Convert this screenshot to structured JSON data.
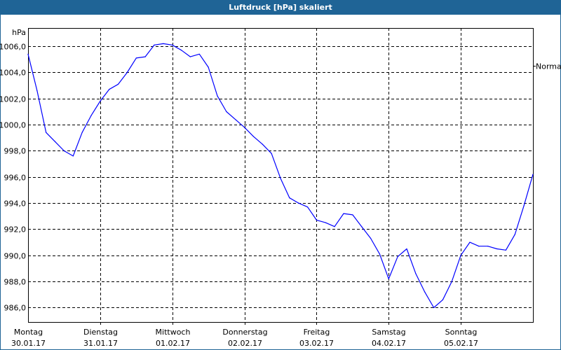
{
  "window": {
    "title": "Luftdruck [hPa] skaliert",
    "title_bar_color": "#1f6496"
  },
  "chart_data": {
    "type": "line",
    "title": "Luftdruck [hPa] skaliert",
    "ylabel": "hPa",
    "xlabel": "",
    "ylim": [
      984.9,
      1007.4
    ],
    "xlim": [
      "2017-01-30T00:00",
      "2017-02-06T00:00"
    ],
    "grid": true,
    "yticks": [
      986,
      988,
      990,
      992,
      994,
      996,
      998,
      1000,
      1002,
      1004,
      1006
    ],
    "ytick_labels": [
      "986,0",
      "988,0",
      "990,0",
      "992,0",
      "994,0",
      "996,0",
      "998,0",
      "1000,0",
      "1002,0",
      "1004,0",
      "1006,0"
    ],
    "xticks": [
      {
        "day": "Montag",
        "date": "30.01.17",
        "at": "2017-01-30T00:00"
      },
      {
        "day": "Dienstag",
        "date": "31.01.17",
        "at": "2017-01-31T00:00"
      },
      {
        "day": "Mittwoch",
        "date": "01.02.17",
        "at": "2017-02-01T00:00"
      },
      {
        "day": "Donnerstag",
        "date": "02.02.17",
        "at": "2017-02-02T00:00"
      },
      {
        "day": "Freitag",
        "date": "03.02.17",
        "at": "2017-02-03T00:00"
      },
      {
        "day": "Samstag",
        "date": "04.02.17",
        "at": "2017-02-04T00:00"
      },
      {
        "day": "Sonntag",
        "date": "05.02.17",
        "at": "2017-02-05T00:00"
      }
    ],
    "reference_line": {
      "label": "Normal",
      "value": 1004.5
    },
    "series": [
      {
        "color": "#0000ff",
        "x": [
          "2017-01-30T00:00",
          "2017-01-30T03:00",
          "2017-01-30T06:00",
          "2017-01-30T09:00",
          "2017-01-30T12:00",
          "2017-01-30T15:00",
          "2017-01-30T18:00",
          "2017-01-30T21:00",
          "2017-01-31T00:00",
          "2017-01-31T03:00",
          "2017-01-31T06:00",
          "2017-01-31T09:00",
          "2017-01-31T12:00",
          "2017-01-31T15:00",
          "2017-01-31T18:00",
          "2017-01-31T21:00",
          "2017-02-01T00:00",
          "2017-02-01T03:00",
          "2017-02-01T06:00",
          "2017-02-01T09:00",
          "2017-02-01T12:00",
          "2017-02-01T15:00",
          "2017-02-01T18:00",
          "2017-02-01T21:00",
          "2017-02-02T00:00",
          "2017-02-02T03:00",
          "2017-02-02T06:00",
          "2017-02-02T09:00",
          "2017-02-02T12:00",
          "2017-02-02T15:00",
          "2017-02-02T18:00",
          "2017-02-02T21:00",
          "2017-02-03T00:00",
          "2017-02-03T03:00",
          "2017-02-03T06:00",
          "2017-02-03T09:00",
          "2017-02-03T12:00",
          "2017-02-03T15:00",
          "2017-02-03T18:00",
          "2017-02-03T21:00",
          "2017-02-04T00:00",
          "2017-02-04T03:00",
          "2017-02-04T06:00",
          "2017-02-04T09:00",
          "2017-02-04T12:00",
          "2017-02-04T15:00",
          "2017-02-04T18:00",
          "2017-02-04T21:00",
          "2017-02-05T00:00",
          "2017-02-05T03:00",
          "2017-02-05T06:00",
          "2017-02-05T09:00",
          "2017-02-05T12:00",
          "2017-02-05T15:00",
          "2017-02-05T18:00",
          "2017-02-05T21:00",
          "2017-02-06T00:00"
        ],
        "y": [
          1005.4,
          1002.6,
          999.4,
          998.7,
          998.0,
          997.6,
          999.4,
          1000.7,
          1001.8,
          1002.7,
          1003.1,
          1004.0,
          1005.1,
          1005.2,
          1006.1,
          1006.2,
          1006.1,
          1005.7,
          1005.2,
          1005.4,
          1004.4,
          1002.2,
          1001.0,
          1000.4,
          999.8,
          999.1,
          998.5,
          997.8,
          995.9,
          994.4,
          994.0,
          993.7,
          992.7,
          992.5,
          992.2,
          993.2,
          993.1,
          992.2,
          991.3,
          990.1,
          988.2,
          989.9,
          990.5,
          988.6,
          987.2,
          986.0,
          986.6,
          988.0,
          990.0,
          991.0,
          990.7,
          990.7,
          990.5,
          990.4,
          991.6,
          993.8,
          996.2
        ]
      }
    ]
  }
}
